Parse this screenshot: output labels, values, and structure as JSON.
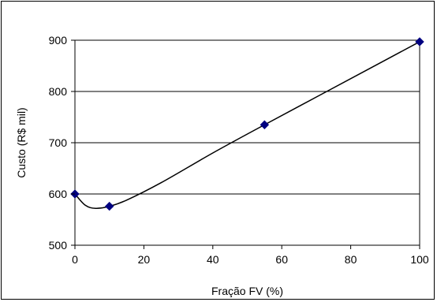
{
  "chart_data": {
    "type": "scatter",
    "title": "",
    "xlabel": "Fração FV (%)",
    "ylabel": "Custo (R$ mil)",
    "xlim": [
      0,
      100
    ],
    "ylim": [
      500,
      900
    ],
    "xticks": [
      0,
      20,
      40,
      60,
      80,
      100
    ],
    "yticks": [
      500,
      600,
      700,
      800,
      900
    ],
    "grid": "horizontal",
    "legend": "none",
    "series": [
      {
        "points": [
          {
            "x": 0,
            "y": 600
          },
          {
            "x": 10,
            "y": 576
          },
          {
            "x": 55,
            "y": 735
          },
          {
            "x": 100,
            "y": 897
          }
        ],
        "curve": [
          {
            "x": 0,
            "y": 600
          },
          {
            "x": 3,
            "y": 578
          },
          {
            "x": 6,
            "y": 572
          },
          {
            "x": 10,
            "y": 576
          },
          {
            "x": 15,
            "y": 588
          },
          {
            "x": 25,
            "y": 622
          },
          {
            "x": 40,
            "y": 680
          },
          {
            "x": 55,
            "y": 735
          },
          {
            "x": 70,
            "y": 789
          },
          {
            "x": 85,
            "y": 843
          },
          {
            "x": 100,
            "y": 897
          }
        ]
      }
    ],
    "colors": {
      "marker": "#000080",
      "line": "#000000",
      "grid": "#000000",
      "frame": "#000000"
    }
  }
}
